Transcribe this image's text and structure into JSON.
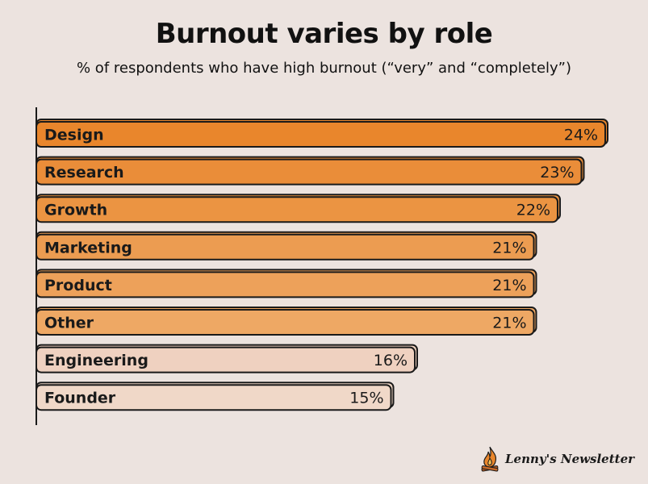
{
  "title": "Burnout varies by role",
  "subtitle": "% of respondents who have high burnout (“very” and “completely”)",
  "brand": "Lenny's Newsletter",
  "chart_data": {
    "type": "bar",
    "orientation": "horizontal",
    "title": "Burnout varies by role",
    "subtitle": "% of respondents who have high burnout (“very” and “completely”)",
    "categories": [
      "Design",
      "Research",
      "Growth",
      "Marketing",
      "Product",
      "Other",
      "Engineering",
      "Founder"
    ],
    "values": [
      24,
      23,
      22,
      21,
      21,
      21,
      16,
      15
    ],
    "value_labels": [
      "24%",
      "23%",
      "22%",
      "21%",
      "21%",
      "21%",
      "16%",
      "15%"
    ],
    "unit": "%",
    "xlim": [
      0,
      24
    ],
    "grid": false,
    "colors": [
      "#e9862c",
      "#ea8d39",
      "#eb9442",
      "#ec9c51",
      "#eda15a",
      "#eea864",
      "#efd1c0",
      "#f0d8c8"
    ],
    "outline_color": "#1a1a1a"
  }
}
